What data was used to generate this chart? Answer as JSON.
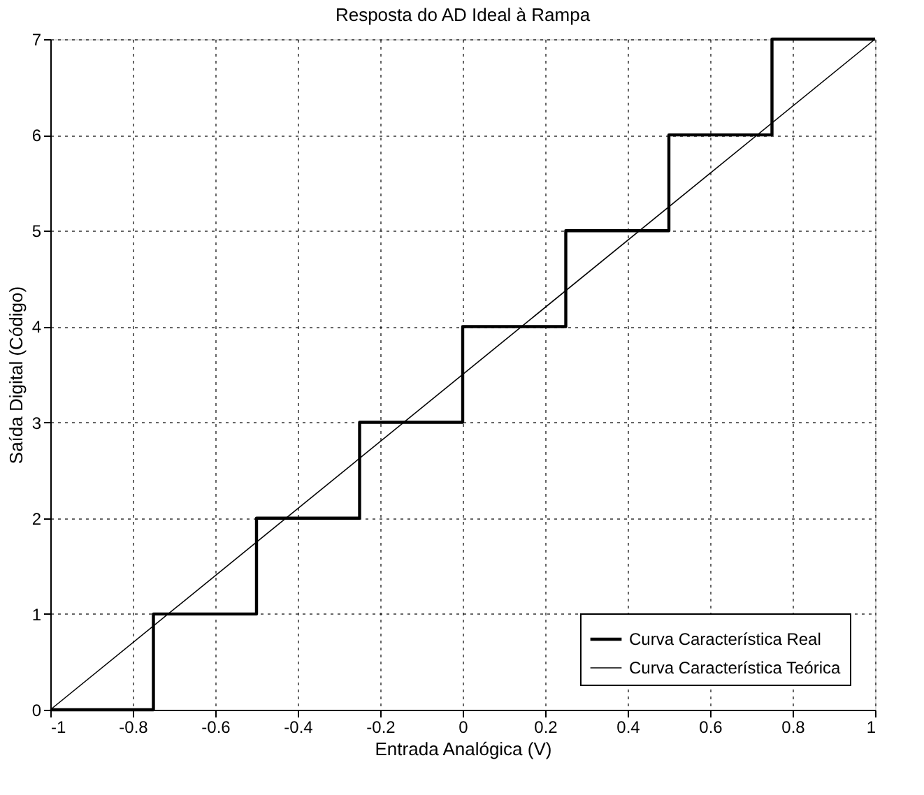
{
  "chart_data": {
    "type": "line",
    "title": "Resposta do AD Ideal à Rampa",
    "xlabel": "Entrada Analógica (V)",
    "ylabel": "Saída Digital (Código)",
    "xlim": [
      -1,
      1
    ],
    "ylim": [
      0,
      7
    ],
    "xticks": [
      -1,
      -0.8,
      -0.6,
      -0.4,
      -0.2,
      0,
      0.2,
      0.4,
      0.6,
      0.8,
      1
    ],
    "yticks": [
      0,
      1,
      2,
      3,
      4,
      5,
      6,
      7
    ],
    "grid": true,
    "legend": "bottom right",
    "line_style": "solid",
    "marker": "none",
    "series": [
      {
        "name": "Curva Característica Real",
        "type": "step",
        "color": "#000000",
        "x": [
          -1,
          -0.75,
          -0.5,
          -0.25,
          0,
          0.25,
          0.5,
          0.75,
          1
        ],
        "values": [
          0,
          1,
          2,
          3,
          4,
          5,
          6,
          7,
          7
        ]
      },
      {
        "name": "Curva Característica Teórica",
        "type": "line",
        "color": "#000000",
        "x": [
          -1,
          1
        ],
        "values": [
          0,
          7
        ]
      }
    ]
  }
}
